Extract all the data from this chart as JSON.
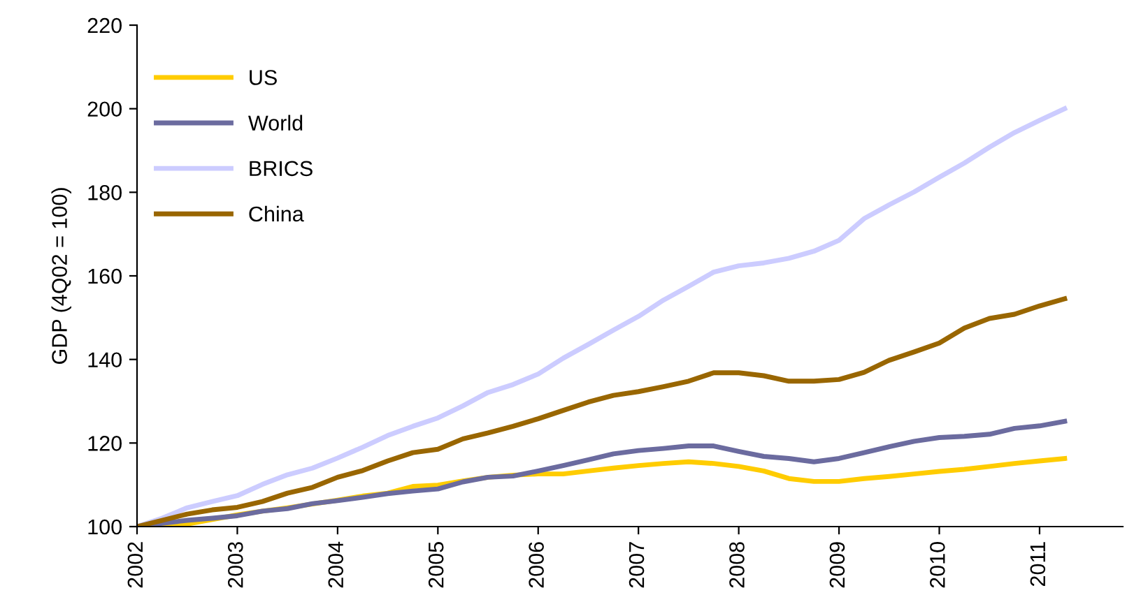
{
  "chart_data": {
    "type": "line",
    "ylabel": "GDP (4Q02 = 100)",
    "x": [
      2002,
      2002.25,
      2002.5,
      2002.75,
      2003,
      2003.25,
      2003.5,
      2003.75,
      2004,
      2004.25,
      2004.5,
      2004.75,
      2005,
      2005.25,
      2005.5,
      2005.75,
      2006,
      2006.25,
      2006.5,
      2006.75,
      2007,
      2007.25,
      2007.5,
      2007.75,
      2008,
      2008.25,
      2008.5,
      2008.75,
      2009,
      2009.25,
      2009.5,
      2009.75,
      2010,
      2010.25,
      2010.5,
      2010.75,
      2011,
      2011.25
    ],
    "series": [
      {
        "name": "US",
        "color": "#ffcc00",
        "values": [
          100,
          100.2,
          100.6,
          101.7,
          102.8,
          103.7,
          104.5,
          105.4,
          106.3,
          107.3,
          108,
          109.6,
          109.9,
          110.9,
          111.8,
          112.3,
          112.6,
          112.6,
          113.3,
          114,
          114.6,
          115.1,
          115.5,
          115.1,
          114.4,
          113.3,
          111.5,
          110.8,
          110.8,
          111.5,
          112,
          112.6,
          113.2,
          113.7,
          114.4,
          115.1,
          115.7,
          116.3
        ]
      },
      {
        "name": "World",
        "color": "#6b6b9f",
        "values": [
          100,
          100.8,
          101.5,
          102,
          102.6,
          103.7,
          104.3,
          105.5,
          106.2,
          107,
          107.9,
          108.5,
          109,
          110.7,
          111.8,
          112.1,
          113.3,
          114.6,
          116,
          117.4,
          118.2,
          118.7,
          119.3,
          119.3,
          118,
          116.8,
          116.3,
          115.5,
          116.3,
          117.7,
          119.1,
          120.4,
          121.3,
          121.6,
          122.1,
          123.5,
          124.1,
          125.2
        ]
      },
      {
        "name": "BRICS",
        "color": "#ccccff",
        "values": [
          100,
          102,
          104.5,
          106,
          107.4,
          110.1,
          112.4,
          114,
          116.4,
          119,
          121.8,
          124,
          126,
          128.9,
          132.1,
          134,
          136.5,
          140.3,
          143.6,
          147,
          150.3,
          154.2,
          157.5,
          160.9,
          162.4,
          163.1,
          164.2,
          165.9,
          168.5,
          173.7,
          177,
          180.1,
          183.6,
          187,
          190.8,
          194.3,
          197.2,
          200
        ]
      },
      {
        "name": "China",
        "color": "#996600",
        "values": [
          100,
          101.5,
          103,
          104,
          104.6,
          106,
          108,
          109.4,
          111.8,
          113.4,
          115.7,
          117.7,
          118.5,
          121,
          122.4,
          124,
          125.8,
          127.8,
          129.8,
          131.4,
          132.3,
          133.5,
          134.8,
          136.8,
          136.8,
          136.1,
          134.8,
          134.8,
          135.2,
          136.9,
          139.8,
          141.8,
          143.9,
          147.5,
          149.8,
          150.8,
          152.8,
          154.5
        ]
      }
    ],
    "xlim": [
      2002,
      2011.83
    ],
    "xticks": [
      2002,
      2003,
      2004,
      2005,
      2006,
      2007,
      2008,
      2009,
      2010,
      2011
    ],
    "ylim": [
      100,
      220
    ],
    "yticks": [
      100,
      120,
      140,
      160,
      180,
      200,
      220
    ],
    "grid": false,
    "legend": "top left",
    "marker": "none",
    "line_style": "solid"
  }
}
